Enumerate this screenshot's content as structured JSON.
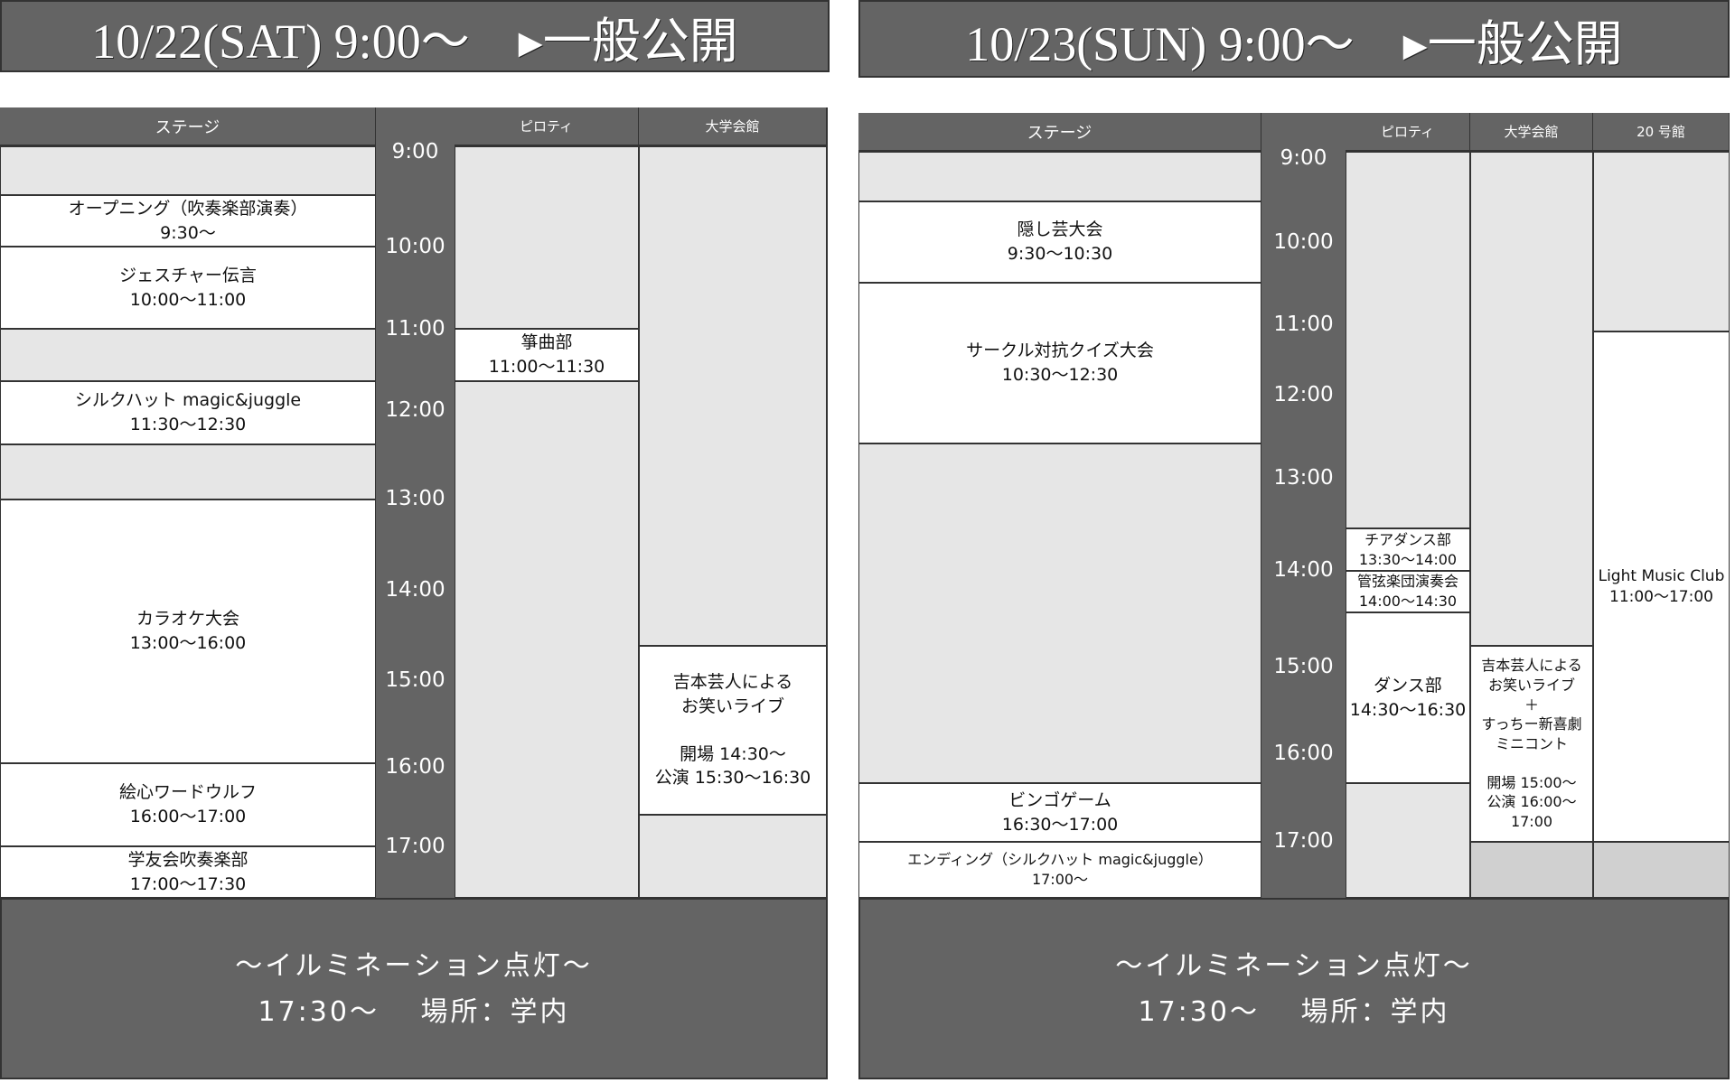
{
  "day1": {
    "title": "10/22(SAT) 9:00～　▸一般公開",
    "headers": {
      "stage": "ステージ",
      "pilotis": "ピロティ",
      "hall": "大学会館"
    },
    "times": [
      "9:00",
      "10:00",
      "11:00",
      "12:00",
      "13:00",
      "14:00",
      "15:00",
      "16:00",
      "17:00"
    ],
    "stage": [
      "オープニング（吹奏楽部演奏）\n9:30～",
      "ジェスチャー伝言\n10:00～11:00",
      "シルクハット magic&juggle\n11:30～12:30",
      "カラオケ大会\n13:00～16:00",
      "絵心ワードウルフ\n16:00～17:00",
      "学友会吹奏楽部\n17:00～17:30"
    ],
    "pilotis": [
      "箏曲部\n11:00～11:30"
    ],
    "hall": [
      "吉本芸人による\nお笑いライブ\n\n開場 14:30～\n公演 15:30～16:30"
    ],
    "footer": {
      "line1": "～イルミネーション点灯～",
      "line2": "17:30～　 場所：学内"
    }
  },
  "day2": {
    "title": "10/23(SUN) 9:00～　▸一般公開",
    "headers": {
      "stage": "ステージ",
      "pilotis": "ピロティ",
      "hall": "大学会館",
      "bldg20": "20 号館"
    },
    "times": [
      "9:00",
      "10:00",
      "11:00",
      "12:00",
      "13:00",
      "14:00",
      "15:00",
      "16:00",
      "17:00"
    ],
    "stage": [
      "隠し芸大会\n9:30～10:30",
      "サークル対抗クイズ大会\n10:30～12:30",
      "ビンゴゲーム\n16:30～17:00",
      "エンディング（シルクハット magic&juggle）\n17:00～"
    ],
    "pilotis": [
      "チアダンス部\n13:30～14:00",
      "管弦楽団演奏会\n14:00～14:30",
      "ダンス部\n14:30～16:30"
    ],
    "hall": [
      "吉本芸人による\nお笑いライブ\n＋\nすっちー新喜劇\nミニコント\n\n開場 15:00～\n公演 16:00～\n17:00"
    ],
    "bldg20": [
      "Light Music Club\n11:00～17:00"
    ],
    "footer": {
      "line1": "～イルミネーション点灯～",
      "line2": "17:30～　 場所：学内"
    }
  },
  "colors": {
    "dark": "#646464",
    "free": "#e6e6e6",
    "closed": "#d0d0d0"
  }
}
